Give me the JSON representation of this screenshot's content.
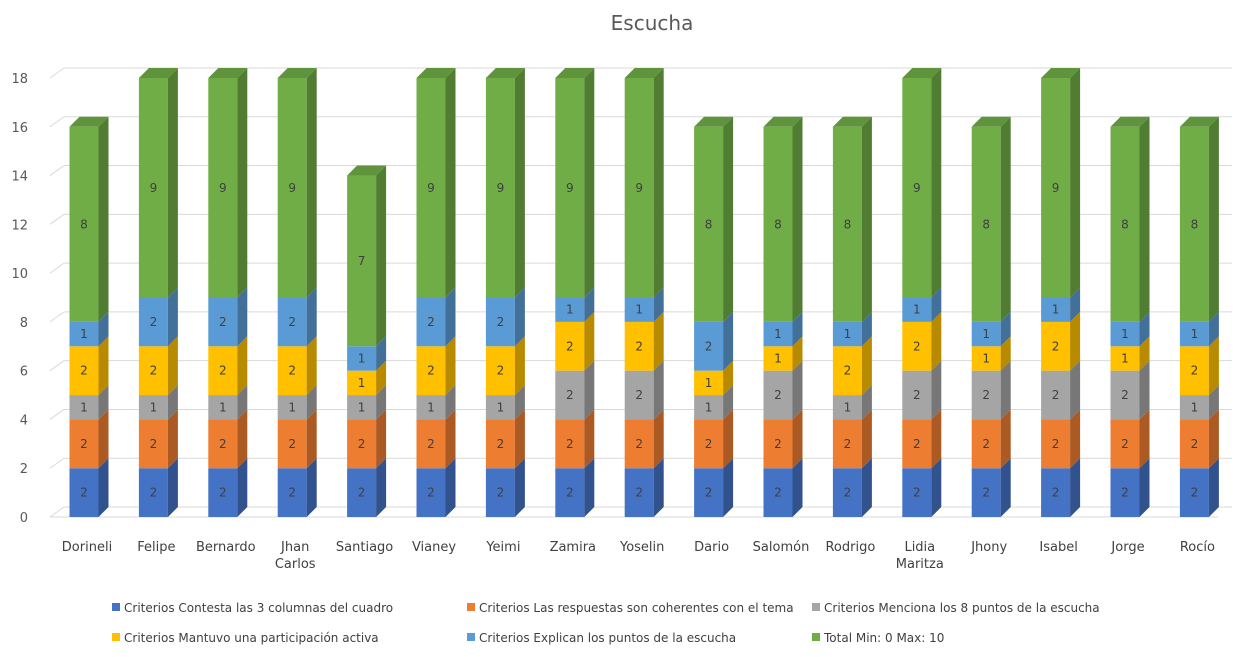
{
  "chart_data": {
    "type": "bar",
    "stacked": true,
    "style": "3d-column",
    "title": "Escucha",
    "xlabel": "",
    "ylabel": "",
    "ylim": [
      0,
      18
    ],
    "yticks": [
      0,
      2,
      4,
      6,
      8,
      10,
      12,
      14,
      16,
      18
    ],
    "grid": true,
    "legend_position": "bottom",
    "categories": [
      [
        "Dorineli"
      ],
      [
        "Felipe"
      ],
      [
        "Bernardo"
      ],
      [
        "Jhan",
        "Carlos"
      ],
      [
        "Santiago"
      ],
      [
        "Vianey"
      ],
      [
        "Yeimi"
      ],
      [
        "Zamira"
      ],
      [
        "Yoselin"
      ],
      [
        "Dario"
      ],
      [
        "Salomón"
      ],
      [
        "Rodrigo"
      ],
      [
        "Lidia",
        "Maritza"
      ],
      [
        "Jhony"
      ],
      [
        "Isabel"
      ],
      [
        "Jorge"
      ],
      [
        "Rocío"
      ]
    ],
    "series": [
      {
        "name": "Criterios  Contesta las 3 columnas del cuadro",
        "color": "#4472C4",
        "values": [
          2,
          2,
          2,
          2,
          2,
          2,
          2,
          2,
          2,
          2,
          2,
          2,
          2,
          2,
          2,
          2,
          2
        ]
      },
      {
        "name": "Criterios  Las respuestas son coherentes con el tema",
        "color": "#ED7D31",
        "values": [
          2,
          2,
          2,
          2,
          2,
          2,
          2,
          2,
          2,
          2,
          2,
          2,
          2,
          2,
          2,
          2,
          2
        ]
      },
      {
        "name": "Criterios  Menciona los 8 puntos de la escucha",
        "color": "#A5A5A5",
        "values": [
          1,
          1,
          1,
          1,
          1,
          1,
          1,
          2,
          2,
          1,
          2,
          1,
          2,
          2,
          2,
          2,
          1
        ]
      },
      {
        "name": "Criterios  Mantuvo una participación activa",
        "color": "#FFC000",
        "values": [
          2,
          2,
          2,
          2,
          1,
          2,
          2,
          2,
          2,
          1,
          1,
          2,
          2,
          1,
          2,
          1,
          2
        ]
      },
      {
        "name": "Criterios  Explican los puntos de la escucha",
        "color": "#5B9BD5",
        "values": [
          1,
          2,
          2,
          2,
          1,
          2,
          2,
          1,
          1,
          2,
          1,
          1,
          1,
          1,
          1,
          1,
          1
        ]
      },
      {
        "name": "Total Min: 0 Max: 10",
        "color": "#70AD47",
        "values": [
          8,
          9,
          9,
          9,
          7,
          9,
          9,
          9,
          9,
          8,
          8,
          8,
          9,
          8,
          9,
          8,
          8
        ]
      }
    ]
  }
}
